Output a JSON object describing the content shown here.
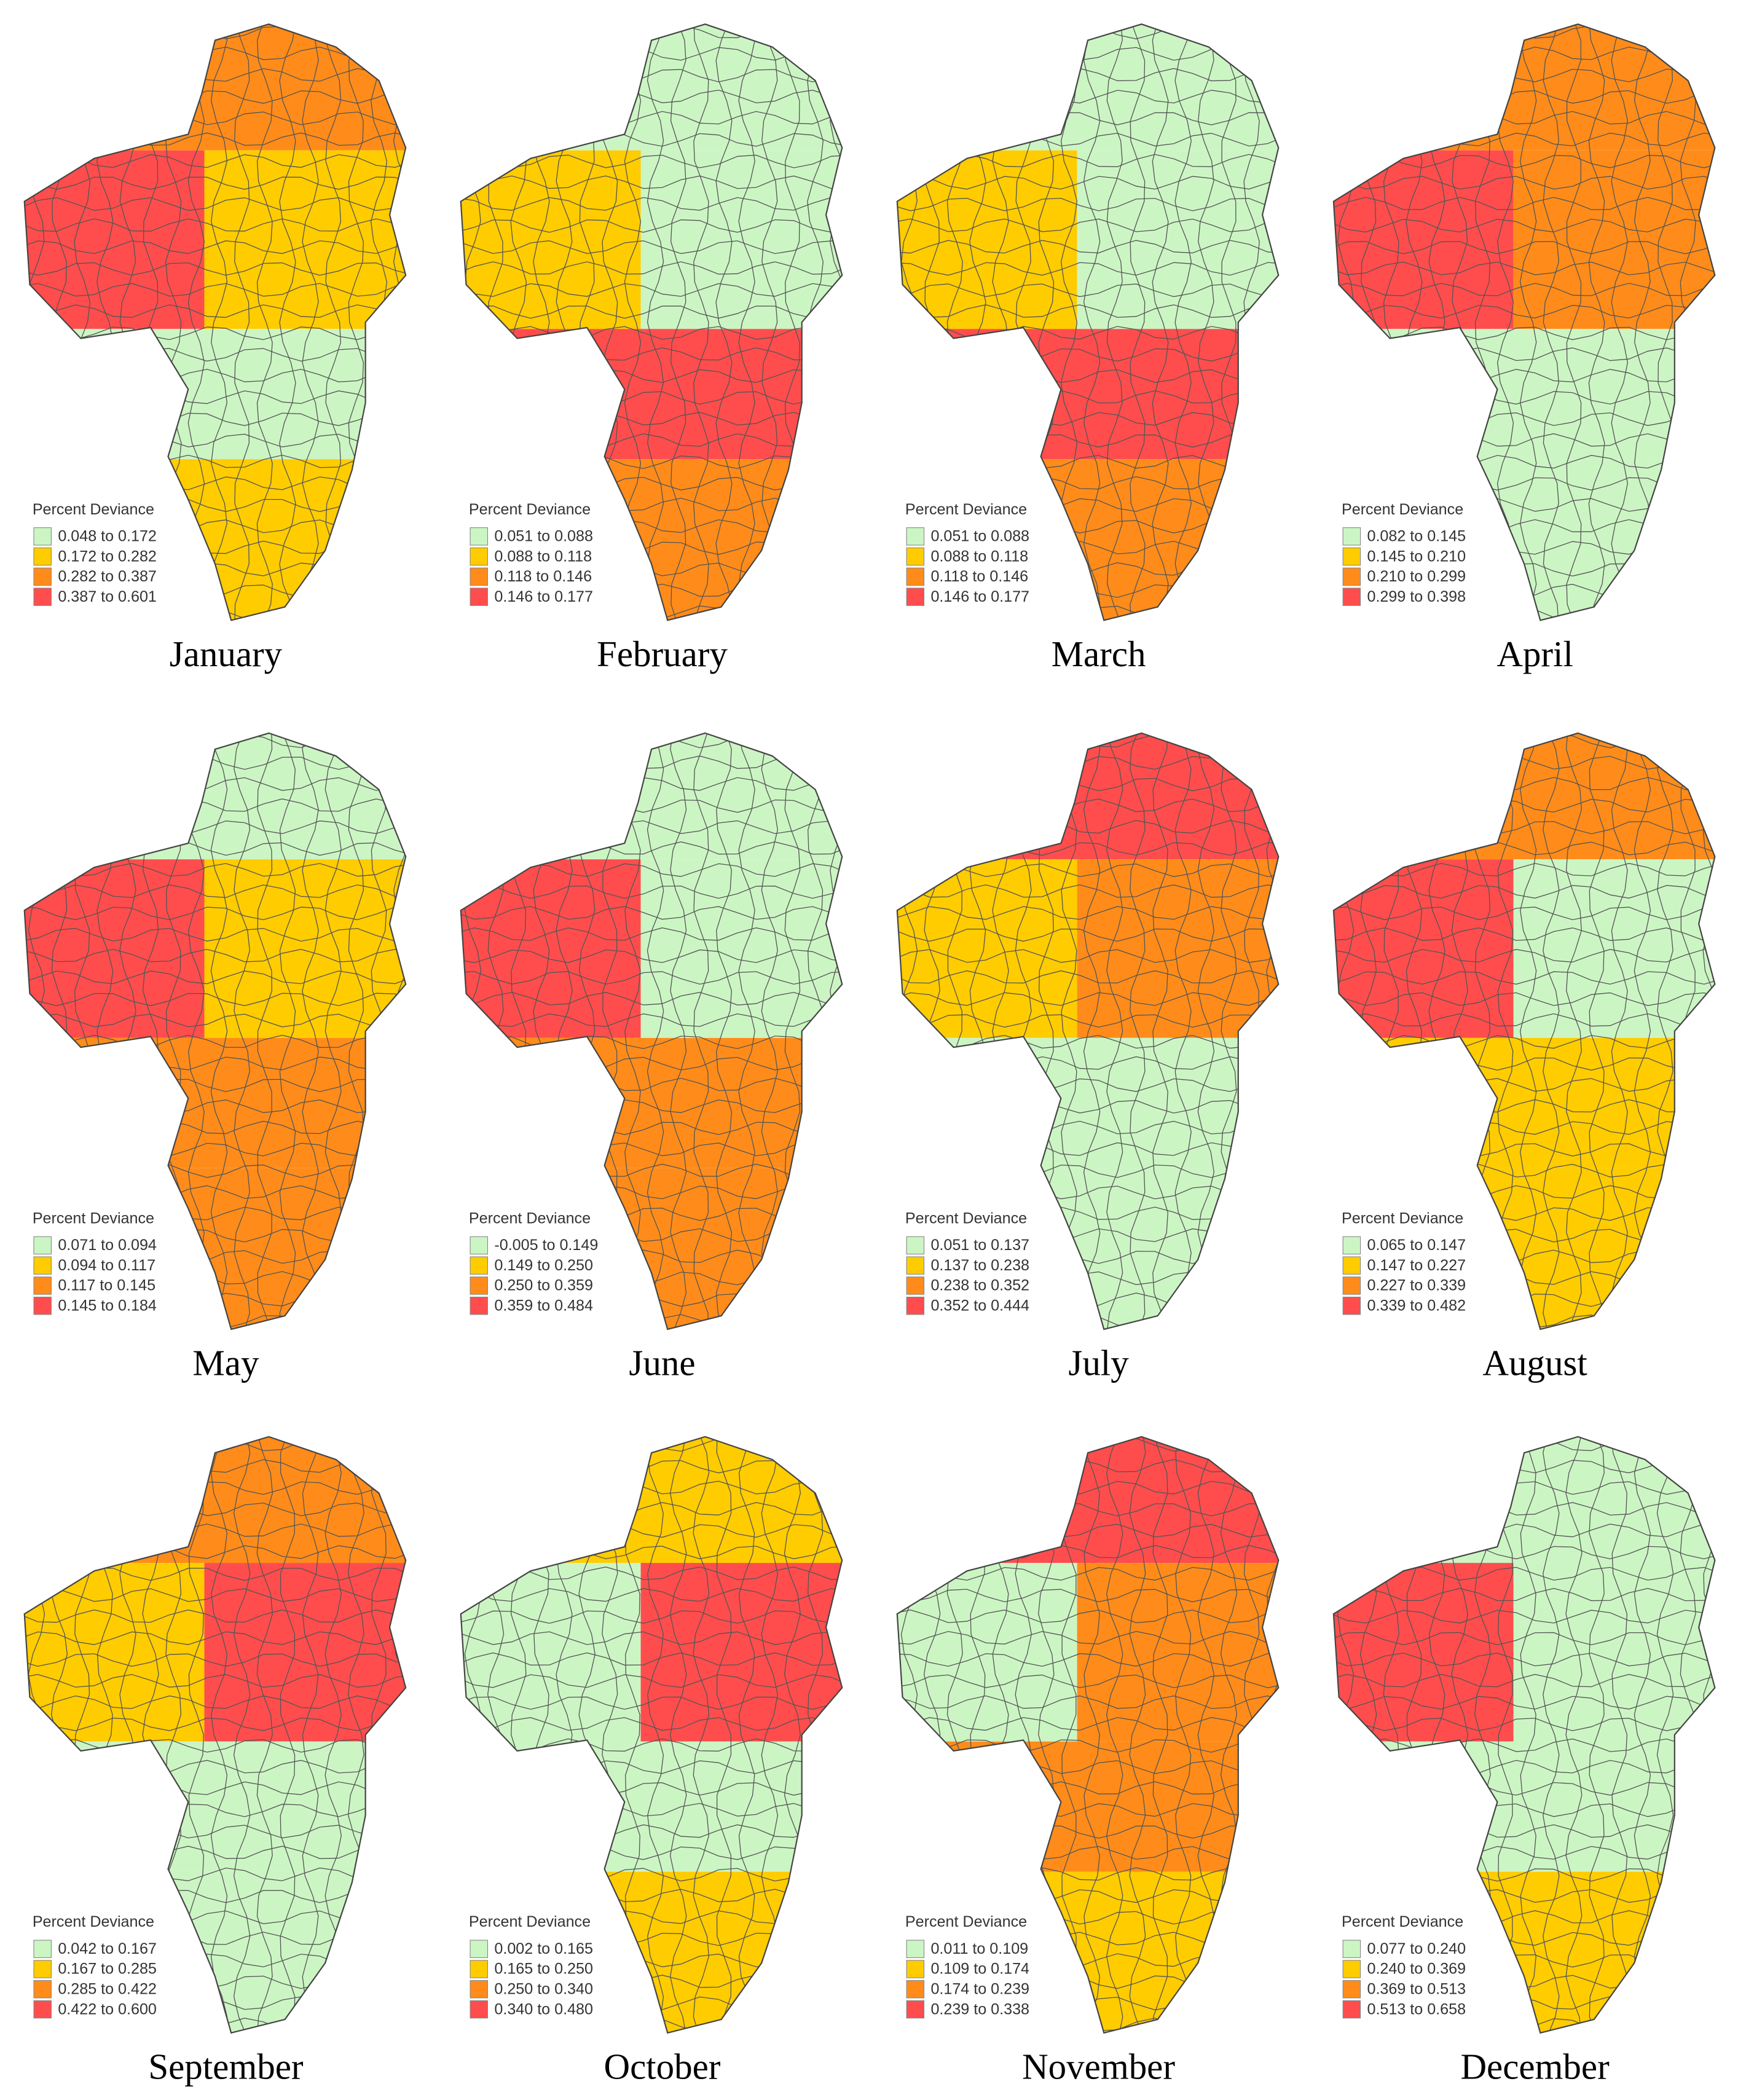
{
  "legend_colors": [
    "#ccf5c4",
    "#ffcc00",
    "#ff8c1a",
    "#ff4d4d"
  ],
  "panels": [
    {
      "month": "January",
      "legend": {
        "title": "Percent Deviance",
        "items": [
          "0.048 to 0.172",
          "0.172 to 0.282",
          "0.282 to 0.387",
          "0.387 to 0.601"
        ]
      }
    },
    {
      "month": "February",
      "legend": {
        "title": "Percent Deviance",
        "items": [
          "0.051 to 0.088",
          "0.088 to 0.118",
          "0.118 to 0.146",
          "0.146 to 0.177"
        ]
      }
    },
    {
      "month": "March",
      "legend": {
        "title": "Percent Deviance",
        "items": [
          "0.051 to 0.088",
          "0.088 to 0.118",
          "0.118 to 0.146",
          "0.146 to 0.177"
        ]
      }
    },
    {
      "month": "April",
      "legend": {
        "title": "Percent Deviance",
        "items": [
          "0.082 to 0.145",
          "0.145 to 0.210",
          "0.210 to 0.299",
          "0.299 to 0.398"
        ]
      }
    },
    {
      "month": "May",
      "legend": {
        "title": "Percent Deviance",
        "items": [
          "0.071 to 0.094",
          "0.094 to 0.117",
          "0.117 to 0.145",
          "0.145 to 0.184"
        ]
      }
    },
    {
      "month": "June",
      "legend": {
        "title": "Percent Deviance",
        "items": [
          "-0.005 to 0.149",
          "0.149 to 0.250",
          "0.250 to 0.359",
          "0.359 to 0.484"
        ]
      }
    },
    {
      "month": "July",
      "legend": {
        "title": "Percent Deviance",
        "items": [
          "0.051 to 0.137",
          "0.137 to 0.238",
          "0.238 to 0.352",
          "0.352 to 0.444"
        ]
      }
    },
    {
      "month": "August",
      "legend": {
        "title": "Percent Deviance",
        "items": [
          "0.065 to 0.147",
          "0.147 to 0.227",
          "0.227 to 0.339",
          "0.339 to 0.482"
        ]
      }
    },
    {
      "month": "September",
      "legend": {
        "title": "Percent Deviance",
        "items": [
          "0.042 to 0.167",
          "0.167 to 0.285",
          "0.285 to 0.422",
          "0.422 to 0.600"
        ]
      }
    },
    {
      "month": "October",
      "legend": {
        "title": "Percent Deviance",
        "items": [
          "0.002 to 0.165",
          "0.165 to 0.250",
          "0.250 to 0.340",
          "0.340 to 0.480"
        ]
      }
    },
    {
      "month": "November",
      "legend": {
        "title": "Percent Deviance",
        "items": [
          "0.011 to 0.109",
          "0.109 to 0.174",
          "0.174 to 0.239",
          "0.239 to 0.338"
        ]
      }
    },
    {
      "month": "December",
      "legend": {
        "title": "Percent Deviance",
        "items": [
          "0.077 to 0.240",
          "0.240 to 0.369",
          "0.369 to 0.513",
          "0.513 to 0.658"
        ]
      }
    }
  ]
}
